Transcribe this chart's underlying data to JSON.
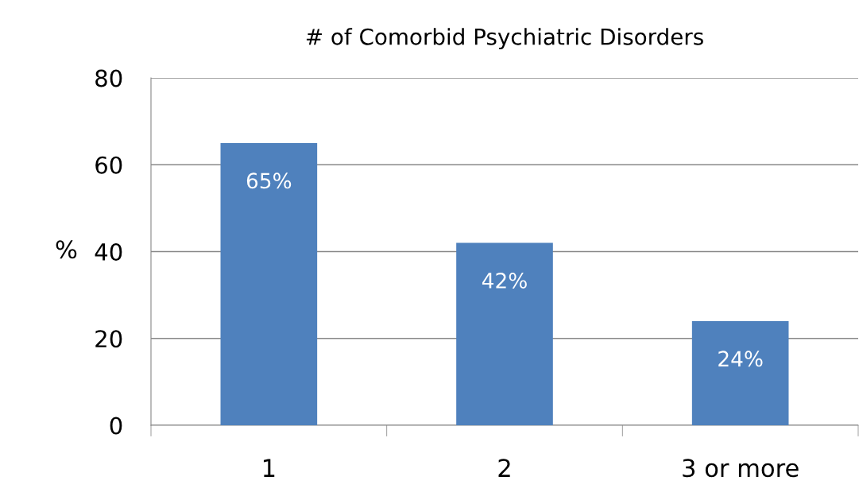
{
  "chart_data": {
    "type": "bar",
    "title": "# of Comorbid Psychiatric Disorders",
    "ylabel": "%",
    "categories": [
      "1",
      "2",
      "3 or more"
    ],
    "values": [
      65,
      42,
      24
    ],
    "value_labels": [
      "65%",
      "42%",
      "24%"
    ],
    "color": "#4f81bd",
    "ylim": [
      0,
      80
    ],
    "yticks": [
      0,
      20,
      40,
      60,
      80
    ],
    "grid": "y",
    "legend": false
  }
}
